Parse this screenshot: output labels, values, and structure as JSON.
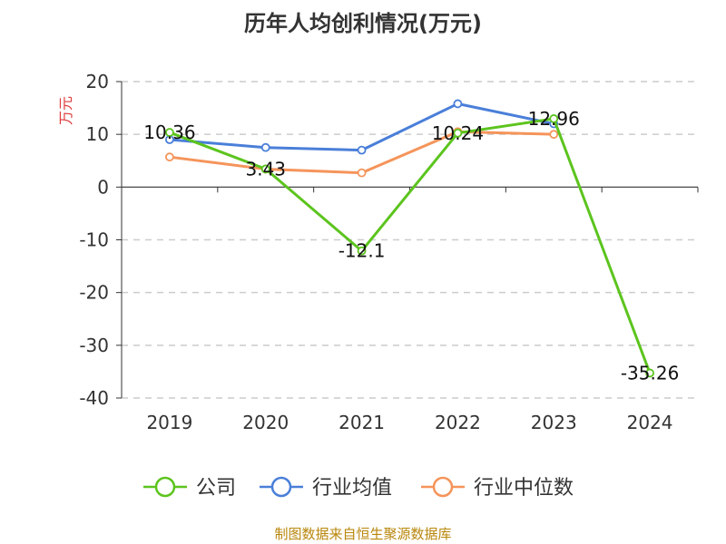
{
  "title": "历年人均创利情况(万元)",
  "footer": "制图数据来自恒生聚源数据库",
  "colors": {
    "footer": "#b8860b",
    "ylabel": "#e03c3c",
    "axis": "#333333",
    "grid": "#cccccc"
  },
  "chart_data": {
    "type": "line",
    "title": "历年人均创利情况(万元)",
    "ylabel": "万元",
    "xlabel": "",
    "categories": [
      "2019",
      "2020",
      "2021",
      "2022",
      "2023",
      "2024"
    ],
    "ylim": [
      -40,
      20
    ],
    "yticks": [
      20,
      10,
      0,
      -10,
      -20,
      -30,
      -40
    ],
    "grid": true,
    "legend_position": "bottom",
    "series": [
      {
        "name": "公司",
        "color": "#5cc41e",
        "values": [
          10.36,
          3.43,
          -12.1,
          10.24,
          12.96,
          -35.26
        ],
        "labels": [
          "10.36",
          "3.43",
          "-12.1",
          "10.24",
          "12.96",
          "-35.26"
        ]
      },
      {
        "name": "行业均值",
        "color": "#4a7fd9",
        "values": [
          9.0,
          7.5,
          7.0,
          15.8,
          12.0,
          null
        ]
      },
      {
        "name": "行业中位数",
        "color": "#f5945a",
        "values": [
          5.7,
          3.4,
          2.7,
          10.5,
          10.0,
          null
        ]
      }
    ]
  }
}
